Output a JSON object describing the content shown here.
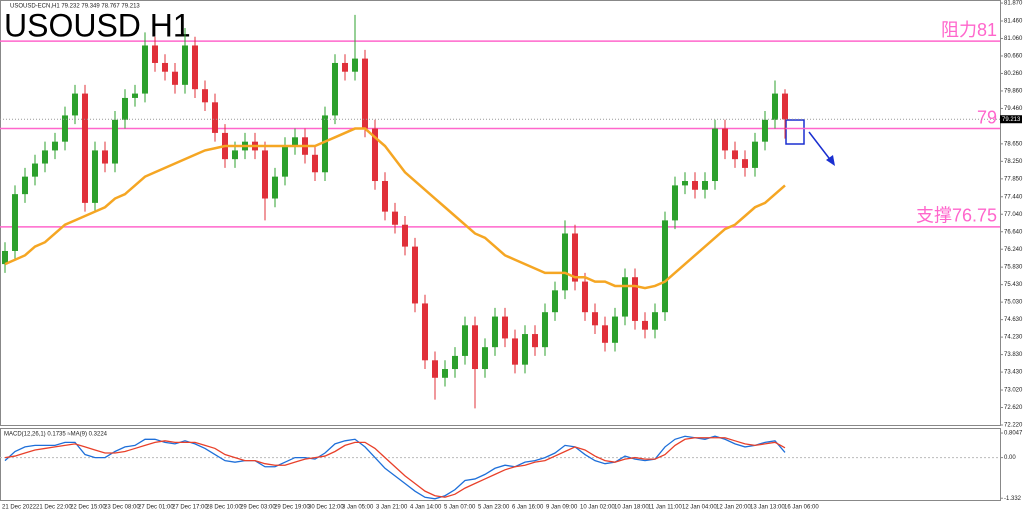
{
  "chart_data": {
    "type": "candlestick",
    "header": "USOUSD-ECN,H1  79.232 79.349 78.767 79.213",
    "title": "USOUSD H1",
    "ylim": [
      72.22,
      81.94
    ],
    "yticks": [
      {
        "value": 72.22,
        "label": "72.220"
      },
      {
        "value": 72.62,
        "label": "72.620"
      },
      {
        "value": 73.02,
        "label": "73.020"
      },
      {
        "value": 73.43,
        "label": "73.430"
      },
      {
        "value": 73.83,
        "label": "73.830"
      },
      {
        "value": 74.23,
        "label": "74.230"
      },
      {
        "value": 74.63,
        "label": "74.630"
      },
      {
        "value": 75.03,
        "label": "75.030"
      },
      {
        "value": 75.43,
        "label": "75.430"
      },
      {
        "value": 75.83,
        "label": "75.830"
      },
      {
        "value": 76.24,
        "label": "76.240"
      },
      {
        "value": 76.64,
        "label": "76.640"
      },
      {
        "value": 77.04,
        "label": "77.040"
      },
      {
        "value": 77.44,
        "label": "77.440"
      },
      {
        "value": 77.85,
        "label": "77.850"
      },
      {
        "value": 78.25,
        "label": "78.250"
      },
      {
        "value": 78.65,
        "label": "78.650"
      },
      {
        "value": 79.46,
        "label": "79.460"
      },
      {
        "value": 79.86,
        "label": "79.860"
      },
      {
        "value": 80.26,
        "label": "80.260"
      },
      {
        "value": 80.66,
        "label": "80.660"
      },
      {
        "value": 81.06,
        "label": "81.060"
      },
      {
        "value": 81.46,
        "label": "81.460"
      },
      {
        "value": 81.87,
        "label": "81.870"
      }
    ],
    "current_price": 79.213,
    "up_color": "#2ca02c",
    "down_color": "#e0303a",
    "ma_color": "#f5a623",
    "level_color": "#ff66cc",
    "levels": [
      {
        "value": 81,
        "label": "阻力81"
      },
      {
        "value": 79,
        "label": "79"
      },
      {
        "value": 76.75,
        "label": "支撑76.75"
      }
    ],
    "ohlc": [
      [
        75.9,
        76.4,
        75.7,
        76.2
      ],
      [
        76.2,
        77.7,
        76.0,
        77.5
      ],
      [
        77.5,
        78.1,
        77.3,
        77.9
      ],
      [
        77.9,
        78.4,
        77.7,
        78.2
      ],
      [
        78.2,
        78.7,
        78.0,
        78.5
      ],
      [
        78.5,
        78.9,
        78.3,
        78.7
      ],
      [
        78.7,
        79.5,
        78.5,
        79.3
      ],
      [
        79.3,
        80.0,
        79.1,
        79.8
      ],
      [
        79.8,
        80.0,
        77.1,
        77.3
      ],
      [
        77.3,
        78.7,
        77.1,
        78.5
      ],
      [
        78.5,
        78.7,
        78.0,
        78.2
      ],
      [
        78.2,
        79.4,
        78.0,
        79.2
      ],
      [
        79.2,
        79.9,
        79.0,
        79.7
      ],
      [
        79.7,
        80.0,
        79.5,
        79.8
      ],
      [
        79.8,
        81.2,
        79.6,
        80.9
      ],
      [
        80.9,
        81.1,
        80.3,
        80.5
      ],
      [
        80.5,
        80.7,
        80.1,
        80.3
      ],
      [
        80.3,
        80.5,
        79.8,
        80.0
      ],
      [
        80.0,
        81.3,
        79.8,
        80.9
      ],
      [
        80.9,
        81.1,
        79.7,
        79.9
      ],
      [
        79.9,
        80.1,
        79.4,
        79.6
      ],
      [
        79.6,
        79.8,
        78.7,
        78.9
      ],
      [
        78.9,
        79.1,
        78.1,
        78.3
      ],
      [
        78.3,
        78.7,
        78.1,
        78.5
      ],
      [
        78.5,
        78.9,
        78.3,
        78.7
      ],
      [
        78.7,
        78.9,
        78.3,
        78.5
      ],
      [
        78.5,
        78.7,
        76.9,
        77.4
      ],
      [
        77.4,
        78.1,
        77.2,
        77.9
      ],
      [
        77.9,
        78.8,
        77.7,
        78.6
      ],
      [
        78.6,
        79.0,
        78.4,
        78.8
      ],
      [
        78.8,
        79.0,
        78.2,
        78.4
      ],
      [
        78.4,
        78.6,
        77.8,
        78.0
      ],
      [
        78.0,
        79.5,
        77.8,
        79.3
      ],
      [
        79.3,
        80.7,
        79.1,
        80.5
      ],
      [
        80.5,
        80.7,
        80.1,
        80.3
      ],
      [
        80.3,
        81.6,
        80.1,
        80.6
      ],
      [
        80.6,
        80.8,
        78.8,
        79.0
      ],
      [
        79.0,
        79.2,
        77.6,
        77.8
      ],
      [
        77.8,
        78.0,
        76.9,
        77.1
      ],
      [
        77.1,
        77.3,
        76.6,
        76.8
      ],
      [
        76.8,
        77.0,
        76.1,
        76.3
      ],
      [
        76.3,
        76.5,
        74.8,
        75.0
      ],
      [
        75.0,
        75.2,
        73.5,
        73.7
      ],
      [
        73.7,
        73.9,
        72.8,
        73.3
      ],
      [
        73.3,
        73.7,
        73.1,
        73.5
      ],
      [
        73.5,
        74.0,
        73.3,
        73.8
      ],
      [
        73.8,
        74.7,
        73.6,
        74.5
      ],
      [
        74.5,
        74.7,
        72.6,
        73.5
      ],
      [
        73.5,
        74.2,
        73.3,
        74.0
      ],
      [
        74.0,
        74.9,
        73.8,
        74.7
      ],
      [
        74.7,
        74.9,
        74.0,
        74.2
      ],
      [
        74.2,
        74.4,
        73.4,
        73.6
      ],
      [
        73.6,
        74.5,
        73.4,
        74.3
      ],
      [
        74.3,
        74.5,
        73.8,
        74.0
      ],
      [
        74.0,
        75.0,
        73.8,
        74.8
      ],
      [
        74.8,
        75.5,
        74.6,
        75.3
      ],
      [
        75.3,
        76.9,
        75.1,
        76.6
      ],
      [
        76.6,
        76.8,
        75.3,
        75.5
      ],
      [
        75.5,
        75.7,
        74.6,
        74.8
      ],
      [
        74.8,
        75.0,
        74.3,
        74.5
      ],
      [
        74.5,
        74.7,
        73.9,
        74.1
      ],
      [
        74.1,
        74.9,
        73.9,
        74.7
      ],
      [
        74.7,
        75.8,
        74.5,
        75.6
      ],
      [
        75.6,
        75.8,
        74.4,
        74.6
      ],
      [
        74.6,
        74.8,
        74.2,
        74.4
      ],
      [
        74.4,
        75.0,
        74.2,
        74.8
      ],
      [
        74.8,
        77.1,
        74.6,
        76.9
      ],
      [
        76.9,
        77.9,
        76.7,
        77.7
      ],
      [
        77.7,
        78.0,
        77.5,
        77.8
      ],
      [
        77.8,
        78.0,
        77.4,
        77.6
      ],
      [
        77.6,
        78.0,
        77.4,
        77.8
      ],
      [
        77.8,
        79.2,
        77.6,
        79.0
      ],
      [
        79.0,
        79.2,
        78.3,
        78.5
      ],
      [
        78.5,
        78.7,
        78.1,
        78.3
      ],
      [
        78.3,
        78.5,
        77.9,
        78.1
      ],
      [
        78.1,
        78.9,
        77.9,
        78.7
      ],
      [
        78.7,
        79.4,
        78.5,
        79.2
      ],
      [
        79.2,
        80.1,
        79.0,
        79.8
      ],
      [
        79.8,
        79.9,
        78.77,
        79.21
      ]
    ],
    "ma": [
      75.9,
      76.0,
      76.1,
      76.3,
      76.4,
      76.6,
      76.8,
      76.9,
      77.0,
      77.1,
      77.2,
      77.4,
      77.5,
      77.7,
      77.9,
      78.0,
      78.1,
      78.2,
      78.3,
      78.4,
      78.5,
      78.55,
      78.6,
      78.6,
      78.6,
      78.6,
      78.6,
      78.6,
      78.6,
      78.6,
      78.6,
      78.6,
      78.7,
      78.8,
      78.9,
      79.0,
      79.0,
      78.8,
      78.6,
      78.3,
      78.0,
      77.8,
      77.6,
      77.4,
      77.2,
      77.0,
      76.8,
      76.6,
      76.5,
      76.3,
      76.1,
      76.0,
      75.9,
      75.8,
      75.7,
      75.7,
      75.7,
      75.6,
      75.6,
      75.5,
      75.5,
      75.4,
      75.4,
      75.4,
      75.35,
      75.4,
      75.5,
      75.7,
      75.9,
      76.1,
      76.3,
      76.5,
      76.7,
      76.8,
      77.0,
      77.2,
      77.3,
      77.5,
      77.7
    ],
    "x_axis_labels": [
      "21 Dec 2022",
      "21 Dec 22:00",
      "22 Dec 15:00",
      "23 Dec 08:00",
      "27 Dec 01:00",
      "27 Dec 17:00",
      "28 Dec 10:00",
      "29 Dec 03:00",
      "29 Dec 19:00",
      "30 Dec 12:00",
      "3 Jan 05:00",
      "3 Jan 21:00",
      "4 Jan 14:00",
      "5 Jan 07:00",
      "5 Jan 23:00",
      "6 Jan 16:00",
      "9 Jan 09:00",
      "10 Jan 02:00",
      "10 Jan 18:00",
      "11 Jan 11:00",
      "12 Jan 04:00",
      "12 Jan 20:00",
      "13 Jan 13:00",
      "16 Jan 06:00"
    ],
    "macd": {
      "label": "MACD(12,26,1) 0.1735 ≈MA(9) 0.3224",
      "ylim": [
        -1.39,
        0.97
      ],
      "yticks": [
        0.8047,
        {
          "value": 0,
          "label": "0.00"
        },
        -1.332
      ],
      "series": [
        {
          "name": "MACD",
          "color": "#1e6fd9",
          "values": [
            -0.1,
            0.2,
            0.35,
            0.4,
            0.4,
            0.4,
            0.5,
            0.5,
            0.1,
            0.0,
            0.0,
            0.2,
            0.35,
            0.4,
            0.6,
            0.6,
            0.5,
            0.45,
            0.55,
            0.45,
            0.3,
            0.1,
            -0.1,
            -0.15,
            -0.1,
            -0.1,
            -0.3,
            -0.3,
            -0.15,
            0.0,
            0.0,
            -0.05,
            0.15,
            0.45,
            0.55,
            0.6,
            0.35,
            0.0,
            -0.35,
            -0.6,
            -0.85,
            -1.1,
            -1.3,
            -1.35,
            -1.25,
            -1.05,
            -0.75,
            -0.7,
            -0.55,
            -0.35,
            -0.25,
            -0.3,
            -0.15,
            -0.1,
            0.0,
            0.15,
            0.4,
            0.35,
            0.1,
            -0.1,
            -0.2,
            -0.15,
            0.05,
            -0.05,
            -0.1,
            -0.05,
            0.35,
            0.6,
            0.7,
            0.65,
            0.6,
            0.7,
            0.6,
            0.45,
            0.35,
            0.4,
            0.5,
            0.55,
            0.17
          ]
        },
        {
          "name": "MA(9)",
          "color": "#e8402a",
          "values": [
            0.0,
            0.05,
            0.15,
            0.25,
            0.3,
            0.35,
            0.4,
            0.45,
            0.35,
            0.25,
            0.15,
            0.15,
            0.2,
            0.3,
            0.4,
            0.5,
            0.55,
            0.5,
            0.5,
            0.5,
            0.4,
            0.3,
            0.1,
            0.0,
            -0.1,
            -0.1,
            -0.2,
            -0.25,
            -0.25,
            -0.15,
            -0.05,
            0.0,
            0.05,
            0.2,
            0.4,
            0.5,
            0.5,
            0.3,
            0.0,
            -0.3,
            -0.6,
            -0.85,
            -1.1,
            -1.25,
            -1.3,
            -1.2,
            -1.0,
            -0.85,
            -0.7,
            -0.55,
            -0.4,
            -0.3,
            -0.25,
            -0.15,
            -0.1,
            0.05,
            0.2,
            0.35,
            0.25,
            0.05,
            -0.1,
            -0.15,
            -0.05,
            0.0,
            -0.05,
            -0.05,
            0.1,
            0.4,
            0.6,
            0.65,
            0.65,
            0.65,
            0.65,
            0.55,
            0.45,
            0.4,
            0.45,
            0.5,
            0.32
          ]
        }
      ]
    }
  }
}
